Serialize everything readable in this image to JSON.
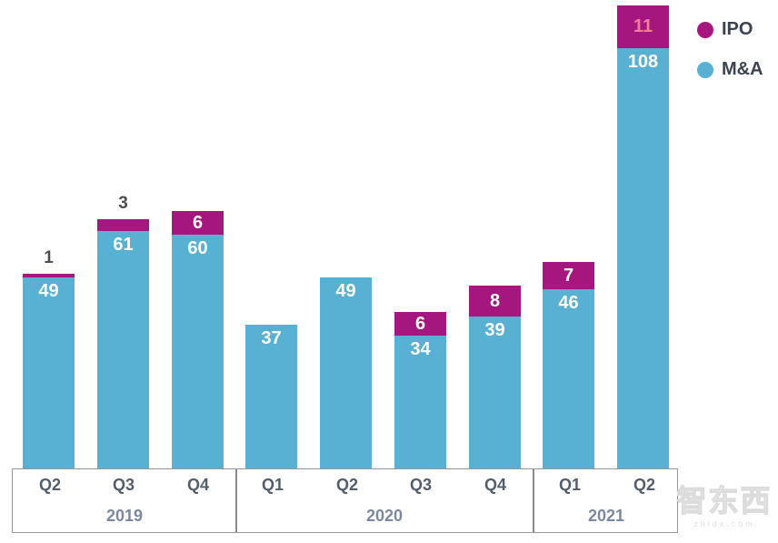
{
  "chart_data": {
    "type": "bar",
    "stacked": true,
    "title": "",
    "xlabel": "",
    "ylabel": "",
    "grid": false,
    "legend_position": "top-right",
    "ylim": [
      0,
      120
    ],
    "categories": [
      "Q2",
      "Q3",
      "Q4",
      "Q1",
      "Q2",
      "Q3",
      "Q4",
      "Q1",
      "Q2"
    ],
    "year_groups": [
      {
        "label": "2019",
        "span": 3
      },
      {
        "label": "2020",
        "span": 4
      },
      {
        "label": "2021",
        "span": 2
      }
    ],
    "series": [
      {
        "name": "M&A",
        "color": "#58B1D3",
        "values": [
          49,
          61,
          60,
          37,
          49,
          34,
          39,
          46,
          108
        ],
        "label_color": "#FFFFFF"
      },
      {
        "name": "IPO",
        "color": "#A5177E",
        "values": [
          1,
          3,
          6,
          0,
          0,
          6,
          8,
          7,
          11
        ],
        "label_color": "#FFFFFF",
        "label_color_overrides": {
          "8": "#EF7E9D"
        },
        "outside_label_color": "#4D4D4D"
      }
    ]
  },
  "legend": {
    "items": [
      {
        "label": "IPO",
        "color": "#A5177E"
      },
      {
        "label": "M&A",
        "color": "#58B1D3"
      }
    ]
  },
  "watermark": {
    "text": "智东西",
    "subtext": "zhidx.com"
  },
  "axis": {
    "line_color": "#979797",
    "quarter_label_color": "#525E6C",
    "year_label_color": "#7A89A0"
  }
}
